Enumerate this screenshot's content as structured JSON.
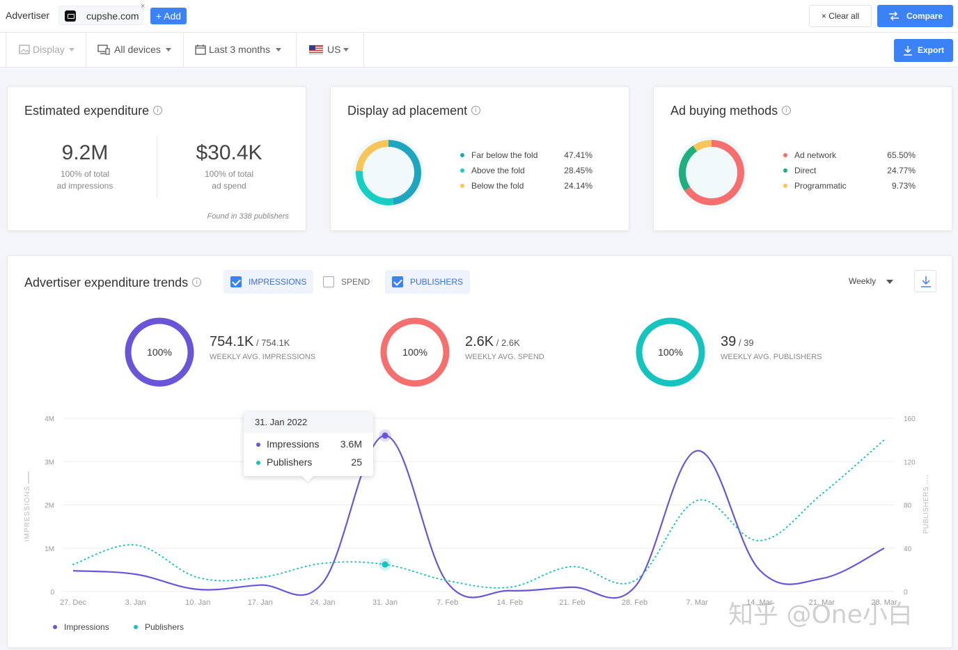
{
  "topbar": {
    "advertiser_label": "Advertiser",
    "domain": "cupshe.com",
    "remove": "×",
    "add_label": "+ Add",
    "clear_all_label": "Clear all",
    "clear_icon": "×",
    "compare_label": "Compare"
  },
  "filters": {
    "type": "Display",
    "devices": "All devices",
    "period": "Last 3 months",
    "country": "US",
    "export_label": "Export"
  },
  "expenditure": {
    "title": "Estimated expenditure",
    "impressions_value": "9.2M",
    "impressions_sub1": "100% of total",
    "impressions_sub2": "ad impressions",
    "spend_value": "$30.4K",
    "spend_sub1": "100% of total",
    "spend_sub2": "ad spend",
    "found_text": "Found in 338 publishers"
  },
  "placement": {
    "title": "Display ad placement",
    "items": [
      {
        "label": "Far below the fold",
        "pct": "47.41%",
        "value": 47.41,
        "color": "#1ea5c0"
      },
      {
        "label": "Above the fold",
        "pct": "28.45%",
        "value": 28.45,
        "color": "#16cfc2"
      },
      {
        "label": "Below the fold",
        "pct": "24.14%",
        "value": 24.14,
        "color": "#f7c65a"
      }
    ]
  },
  "buying": {
    "title": "Ad buying methods",
    "items": [
      {
        "label": "Ad network",
        "pct": "65.50%",
        "value": 65.5,
        "color": "#f56f6f"
      },
      {
        "label": "Direct",
        "pct": "24.77%",
        "value": 24.77,
        "color": "#1fae7e"
      },
      {
        "label": "Programmatic",
        "pct": "9.73%",
        "value": 9.73,
        "color": "#f7c65a"
      }
    ]
  },
  "trends": {
    "title": "Advertiser expenditure trends",
    "toggles": {
      "impressions": "IMPRESSIONS",
      "spend": "SPEND",
      "publishers": "PUBLISHERS"
    },
    "granularity": "Weekly",
    "metrics": [
      {
        "pct": "100%",
        "value": "754.1K",
        "of": "/ 754.1K",
        "label": "WEEKLY AVG. IMPRESSIONS",
        "fraction": 1.0,
        "color": "#6a55d9"
      },
      {
        "pct": "100%",
        "value": "2.6K",
        "of": "/ 2.6K",
        "label": "WEEKLY AVG. SPEND",
        "fraction": 1.0,
        "color": "#f56f6f"
      },
      {
        "pct": "100%",
        "value": "39",
        "of": "/ 39",
        "label": "WEEKLY AVG. PUBLISHERS",
        "fraction": 1.0,
        "color": "#15c4be"
      }
    ]
  },
  "tooltip": {
    "date": "31. Jan 2022",
    "rows": [
      {
        "label": "Impressions",
        "value": "3.6M",
        "color": "#6a55d9"
      },
      {
        "label": "Publishers",
        "value": "25",
        "color": "#15c4be"
      }
    ]
  },
  "chart_data": {
    "type": "line",
    "x": [
      "27. Dec",
      "3. Jan",
      "10. Jan",
      "17. Jan",
      "24. Jan",
      "31. Jan",
      "7. Feb",
      "14. Feb",
      "21. Feb",
      "28. Feb",
      "7. Mar",
      "14. Mar",
      "21. Mar",
      "28. Mar"
    ],
    "series": [
      {
        "name": "Impressions",
        "axis": "left",
        "style": "solid",
        "color": "#6a55d9",
        "values": [
          480000,
          400000,
          50000,
          150000,
          200000,
          3600000,
          200000,
          20000,
          100000,
          100000,
          3250000,
          500000,
          300000,
          1000000
        ]
      },
      {
        "name": "Publishers",
        "axis": "right",
        "style": "dotted",
        "color": "#15c4be",
        "values": [
          25,
          43,
          13,
          13,
          26,
          25,
          10,
          4,
          23,
          10,
          84,
          47,
          90,
          140
        ]
      }
    ],
    "ylabel": "IMPRESSIONS",
    "ylabel_right": "PUBLISHERS",
    "y_ticks_left": [
      "4M",
      "3M",
      "2M",
      "1M",
      "0"
    ],
    "y_ticks_right": [
      "160",
      "120",
      "80",
      "40",
      "0"
    ],
    "ylim_left": [
      0,
      4000000
    ],
    "ylim_right": [
      0,
      160
    ],
    "highlight_index": 5,
    "grid": true,
    "legend_position": "bottom-left"
  },
  "watermark": "知乎 @One小白"
}
